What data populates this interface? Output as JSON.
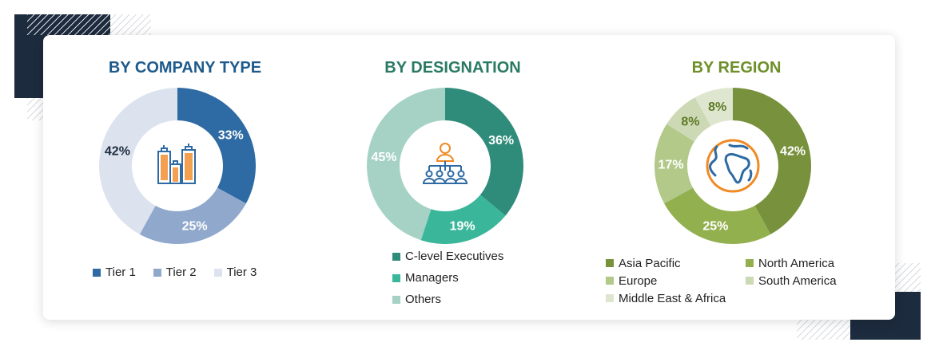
{
  "chart_data": [
    {
      "type": "pie",
      "variant": "donut",
      "title": "BY COMPANY TYPE",
      "title_color": "#1e5a8c",
      "icon": "buildings-icon",
      "categories": [
        "Tier 1",
        "Tier 2",
        "Tier 3"
      ],
      "values": [
        33,
        25,
        42
      ],
      "labels": [
        "33%",
        "25%",
        "42%"
      ],
      "colors": [
        "#2e6aa3",
        "#8fa8cc",
        "#dde3ee"
      ],
      "label_colors": [
        "#ffffff",
        "#ffffff",
        "#1c2b3d"
      ],
      "legend": "bottom"
    },
    {
      "type": "pie",
      "variant": "donut",
      "title": "BY DESIGNATION",
      "title_color": "#2a7a63",
      "icon": "org-hierarchy-icon",
      "categories": [
        "C-level Executives",
        "Managers",
        "Others"
      ],
      "values": [
        36,
        19,
        45
      ],
      "labels": [
        "36%",
        "19%",
        "45%"
      ],
      "colors": [
        "#2f8c7a",
        "#3ab79b",
        "#a6d2c5"
      ],
      "label_colors": [
        "#ffffff",
        "#ffffff",
        "#ffffff"
      ],
      "legend": "bottom"
    },
    {
      "type": "pie",
      "variant": "donut",
      "title": "BY REGION",
      "title_color": "#6e8f2a",
      "icon": "globe-icon",
      "categories": [
        "Asia Pacific",
        "North America",
        "Europe",
        "South America",
        "Middle East & Africa"
      ],
      "values": [
        42,
        25,
        17,
        8,
        8
      ],
      "labels": [
        "42%",
        "25%",
        "17%",
        "8%",
        "8%"
      ],
      "colors": [
        "#78913c",
        "#93b04f",
        "#b2c98a",
        "#cdd9b5",
        "#dfe6cf"
      ],
      "label_colors": [
        "#ffffff",
        "#ffffff",
        "#ffffff",
        "#5e7a26",
        "#5e7a26"
      ],
      "legend": "bottom"
    }
  ]
}
